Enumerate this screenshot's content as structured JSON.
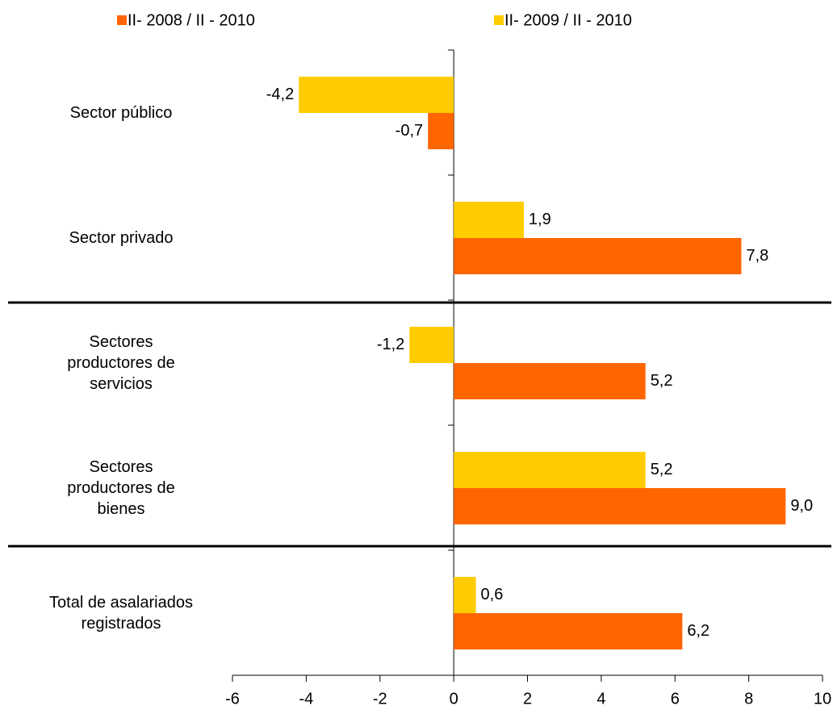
{
  "chart_data": {
    "type": "bar",
    "orientation": "horizontal",
    "categories": [
      "Sector público",
      "Sector privado",
      "Sectores\nproductores de\nservicios",
      "Sectores\nproductores de\nbienes",
      "Total de asalariados\nregistrados"
    ],
    "series": [
      {
        "name": "II- 2008 / II - 2010",
        "color": "#ff6600",
        "values": [
          -0.7,
          7.8,
          5.2,
          9.0,
          6.2
        ],
        "value_labels": [
          "-0,7",
          "7,8",
          "5,2",
          "9,0",
          "6,2"
        ]
      },
      {
        "name": "II- 2009 / II - 2010",
        "color": "#ffcc00",
        "values": [
          -4.2,
          1.9,
          -1.2,
          5.2,
          0.6
        ],
        "value_labels": [
          "-4,2",
          "1,9",
          "-1,2",
          "5,2",
          "0,6"
        ]
      }
    ],
    "xlim": [
      -6,
      10
    ],
    "xticks": [
      -6,
      -4,
      -2,
      0,
      2,
      4,
      6,
      8,
      10
    ],
    "legend": "top"
  }
}
